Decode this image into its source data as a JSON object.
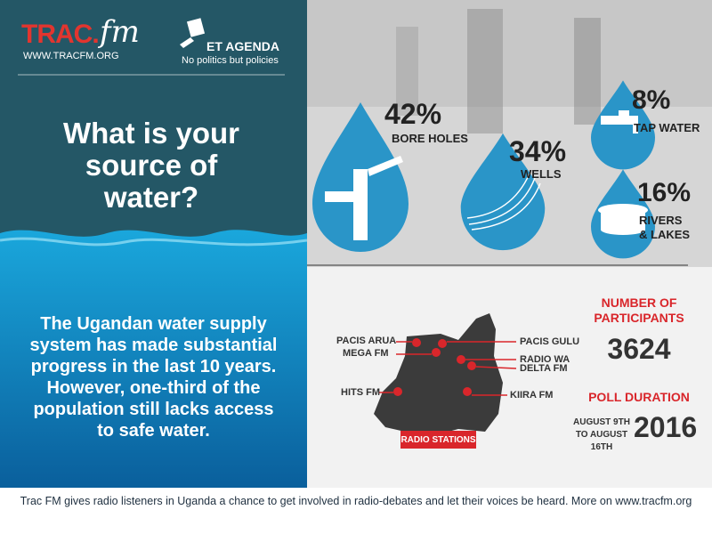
{
  "header": {
    "logo_main": "TRAC.",
    "logo_script": "fm",
    "url": "WWW.TRACFM.ORG",
    "agenda": "ET AGENDA",
    "tagline": "No politics but policies"
  },
  "question": "What is your source of water?",
  "intro": "The Ugandan water supply system has made substantial progress in the last 10 years. However, one-third of the population still lacks access to safe water.",
  "sources": [
    {
      "value": "42%",
      "label": "BORE HOLES"
    },
    {
      "value": "34%",
      "label": "WELLS"
    },
    {
      "value": "8%",
      "label": "TAP WATER"
    },
    {
      "value": "16%",
      "label": "RIVERS & LAKES"
    }
  ],
  "stations": {
    "title": "RADIO STATIONS",
    "names": [
      "PACIS ARUA",
      "MEGA FM",
      "HITS FM",
      "PACIS GULU",
      "RADIO WA",
      "DELTA FM",
      "KIIRA FM"
    ]
  },
  "participants": {
    "label": "NUMBER OF PARTICIPANTS",
    "value": "3624"
  },
  "poll": {
    "label": "POLL DURATION",
    "dates": "AUGUST 9TH TO AUGUST 16TH",
    "year": "2016"
  },
  "footer": "Trac FM gives radio listeners in Uganda a chance to get involved in radio-debates and let their voices be heard. More on www.tracfm.org"
}
